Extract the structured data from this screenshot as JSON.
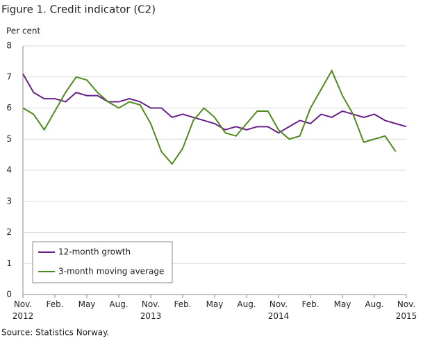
{
  "chart_data": {
    "type": "line",
    "title": "Figure 1. Credit indicator (C2)",
    "y_label": "Per cent",
    "source": "Source: Statistics Norway.",
    "categories": [
      "Nov. 2012",
      null,
      null,
      "Feb.",
      null,
      null,
      "May",
      null,
      null,
      "Aug.",
      null,
      null,
      "Nov. 2013",
      null,
      null,
      "Feb.",
      null,
      null,
      "May",
      null,
      null,
      "Aug.",
      null,
      null,
      "Nov. 2014",
      null,
      null,
      "Feb.",
      null,
      null,
      "May",
      null,
      null,
      "Aug.",
      null,
      null,
      "Nov. 2015"
    ],
    "series": [
      {
        "name": "12-month growth",
        "color": "#6a1f8a",
        "values": [
          7.1,
          6.5,
          6.3,
          6.3,
          6.2,
          6.5,
          6.4,
          6.4,
          6.2,
          6.2,
          6.3,
          6.2,
          6.0,
          6.0,
          5.7,
          5.8,
          5.7,
          5.6,
          5.5,
          5.3,
          5.4,
          5.3,
          5.4,
          5.4,
          5.2,
          5.4,
          5.6,
          5.5,
          5.8,
          5.7,
          5.9,
          5.8,
          5.7,
          5.8,
          5.6,
          5.5,
          5.4
        ]
      },
      {
        "name": "3-month moving average",
        "color": "#4e8a1c",
        "values": [
          6.0,
          5.8,
          5.3,
          5.9,
          6.5,
          7.0,
          6.9,
          6.5,
          6.2,
          6.0,
          6.2,
          6.1,
          5.5,
          4.6,
          4.2,
          4.7,
          5.6,
          6.0,
          5.7,
          5.2,
          5.1,
          5.5,
          5.9,
          5.9,
          5.3,
          5.0,
          5.1,
          6.0,
          6.6,
          7.2,
          6.4,
          5.8,
          4.9,
          5.0,
          5.1,
          4.6,
          null
        ]
      }
    ],
    "ylim": [
      0,
      8
    ],
    "yticks": [
      0,
      1,
      2,
      3,
      4,
      5,
      6,
      7,
      8
    ],
    "grid": true,
    "legend": "lower left"
  }
}
